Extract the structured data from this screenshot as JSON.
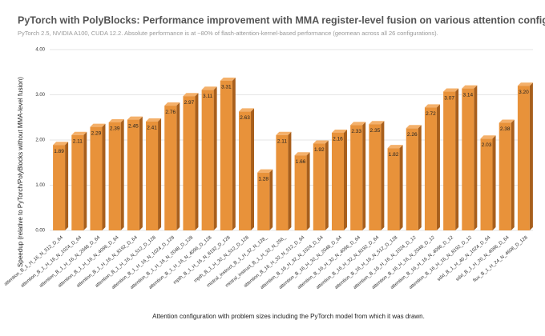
{
  "chart_data": {
    "type": "bar3d",
    "title": "PyTorch with PolyBlocks: Performance improvement with MMA register-level fusion on various attention configurations",
    "subtitle": "PyTorch 2.5, NVIDIA A100, CUDA 12.2. Absolute performance is at ~80% of flash-attention-kernel-based performance (geomean across all 26 configurations).",
    "x_label": "Attention configuration with problem sizes including the PyTorch model from which it was drawn.",
    "y_label": "Speedup (relative to PyTorch/PolyBlocks without MMA-level fusion)",
    "categories": [
      "attention_B_1_H_16_N_512_D_64",
      "attention_B_1_H_16_N_1024_D_64",
      "attention_B_1_H_16_N_2048_D_64",
      "attention_B_1_H_16_N_4096_D_64",
      "attention_B_1_H_16_N_8192_D_64",
      "attention_B_1_H_16_N_512_D_128",
      "attention_B_1_H_16_N_1024_D_128",
      "attention_B_1_H_16_N_2048_D_128",
      "attention_B_1_H_16_N_4096_D_128",
      "mpth_B_1_H_16_N_8192_D_128",
      "mpth_B_1_H_32_N_512_D_128",
      "mistral_instruct_B_1_H_32_N_128_",
      "mistral_instruct_B_1_H_32_N_256_",
      "attention_B_16_H_32_N_512_D_64",
      "attention_B_16_H_32_N_1024_D_64",
      "attention_B_16_H_32_N_2048_D_64",
      "attention_B_16_H_32_N_4096_D_64",
      "attention_B_16_H_32_N_8192_D_64",
      "attention_B_16_H_16_N_512_D_128",
      "attention_B_16_H_16_N_1024_D_12",
      "attention_B_16_H_16_N_2048_D_12",
      "attention_B_16_H_16_N_4096_D_12",
      "attention_B_16_H_16_N_8192_D_12",
      "sdxl_B_1_H_40_N_1024_D_64",
      "sdxl_B_1_H_20_N_4096_D_64",
      "flux_B_1_H_24_N_4608_D_128"
    ],
    "values": [
      1.89,
      2.11,
      2.29,
      2.39,
      2.45,
      2.41,
      2.76,
      2.97,
      3.11,
      3.31,
      2.63,
      1.28,
      2.11,
      1.66,
      1.92,
      2.16,
      2.33,
      2.35,
      1.82,
      2.26,
      2.72,
      3.07,
      3.14,
      2.03,
      2.38,
      3.2
    ],
    "value_labels": [
      "1.89",
      "2.11",
      "2.29",
      "2.39",
      "2.45",
      "2.41",
      "2.76",
      "2.97",
      "3.11",
      "3.31",
      "2.63",
      "1.28",
      "2.11",
      "1.66",
      "1.92",
      "2.16",
      "2.33",
      "2.35",
      "1.82",
      "2.26",
      "2.72",
      "3.07",
      "3.14",
      "2.03",
      "2.38",
      "3.20"
    ],
    "color": "#e8923a",
    "ylim": [
      0,
      4
    ],
    "yticks": [
      {
        "value": 0,
        "label": "0.00"
      },
      {
        "value": 1,
        "label": "1.00"
      },
      {
        "value": 2,
        "label": "2.00"
      },
      {
        "value": 3,
        "label": "3.00"
      },
      {
        "value": 4,
        "label": "4.00"
      }
    ],
    "grid": true
  }
}
